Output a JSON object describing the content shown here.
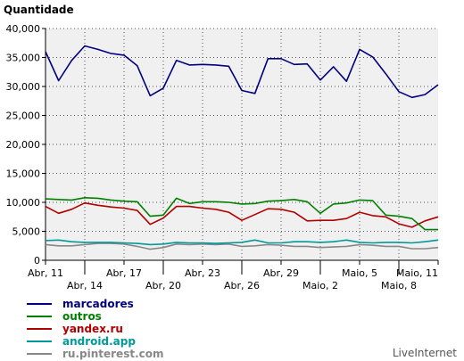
{
  "chart_data": {
    "type": "line",
    "ylabel": "Quantidade",
    "ylim": [
      0,
      40000
    ],
    "yticks": [
      0,
      5000,
      10000,
      15000,
      20000,
      25000,
      30000,
      35000,
      40000
    ],
    "ytick_labels": [
      "0",
      "5,000",
      "10,000",
      "15,000",
      "20,000",
      "25,000",
      "30,000",
      "35,000",
      "40,000"
    ],
    "x": [
      "Abr, 11",
      "Abr, 12",
      "Abr, 13",
      "Abr, 14",
      "Abr, 15",
      "Abr, 16",
      "Abr, 17",
      "Abr, 18",
      "Abr, 19",
      "Abr, 20",
      "Abr, 21",
      "Abr, 22",
      "Abr, 23",
      "Abr, 24",
      "Abr, 25",
      "Abr, 26",
      "Abr, 27",
      "Abr, 28",
      "Abr, 29",
      "Abr, 30",
      "Maio, 1",
      "Maio, 2",
      "Maio, 3",
      "Maio, 4",
      "Maio, 5",
      "Maio, 6",
      "Maio, 7",
      "Maio, 8",
      "Maio, 9",
      "Maio, 10",
      "Maio, 11"
    ],
    "xtick_labels": [
      "Abr, 11",
      "Abr, 14",
      "Abr, 17",
      "Abr, 20",
      "Abr, 23",
      "Abr, 26",
      "Abr, 29",
      "Maio, 2",
      "Maio, 5",
      "Maio, 8",
      "Maio, 11"
    ],
    "grid": true,
    "legend_position": "bottom-left",
    "series": [
      {
        "name": "marcadores",
        "color": "#00007f",
        "values": [
          36000,
          31000,
          34500,
          37000,
          36400,
          35700,
          35400,
          33600,
          28400,
          29700,
          34500,
          33700,
          33800,
          33700,
          33500,
          29300,
          28800,
          34800,
          34800,
          33800,
          33900,
          31100,
          33400,
          30900,
          36400,
          35100,
          32200,
          29100,
          28100,
          28600,
          30300
        ]
      },
      {
        "name": "outros",
        "color": "#008000",
        "values": [
          10600,
          10500,
          10400,
          10800,
          10700,
          10400,
          10200,
          10100,
          7600,
          7800,
          10700,
          9800,
          10100,
          10100,
          10000,
          9700,
          9800,
          10200,
          10300,
          10500,
          10100,
          8100,
          9700,
          9900,
          10400,
          10300,
          7800,
          7600,
          7200,
          5300,
          5300
        ]
      },
      {
        "name": "yandex.ru",
        "color": "#b00000",
        "values": [
          9300,
          8100,
          8800,
          9900,
          9500,
          9200,
          9000,
          8600,
          6200,
          7300,
          9300,
          9300,
          9000,
          8800,
          8300,
          6900,
          7900,
          8900,
          8800,
          8300,
          6800,
          6900,
          6900,
          7200,
          8300,
          7700,
          7500,
          6300,
          5700,
          6800,
          7500
        ]
      },
      {
        "name": "android.app",
        "color": "#009999",
        "values": [
          3400,
          3500,
          3200,
          3100,
          3100,
          3100,
          3000,
          2900,
          2700,
          2800,
          3100,
          3000,
          3000,
          2900,
          3000,
          3100,
          3500,
          3000,
          3000,
          3200,
          3200,
          3100,
          3200,
          3500,
          3100,
          3000,
          3100,
          3100,
          3000,
          3200,
          3500
        ]
      },
      {
        "name": "ru.pinterest.com",
        "color": "#888888",
        "values": [
          2700,
          2500,
          2500,
          2700,
          2900,
          2900,
          2800,
          2400,
          1900,
          2200,
          2800,
          2700,
          2800,
          2700,
          2800,
          2400,
          2500,
          2700,
          2600,
          2400,
          2400,
          2200,
          2300,
          2400,
          2700,
          2600,
          2400,
          2400,
          2000,
          2000,
          2200
        ]
      }
    ],
    "watermark": "LiveInternet"
  }
}
